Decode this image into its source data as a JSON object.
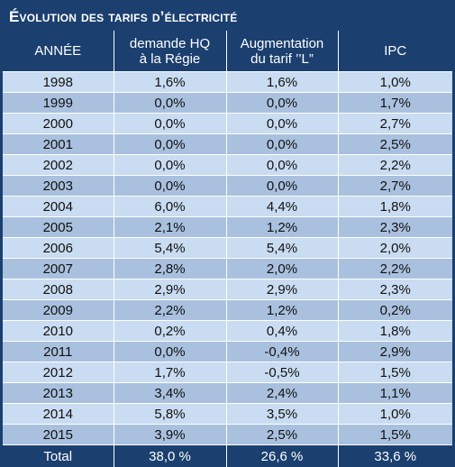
{
  "title": "Évolution des tarifs d’électricité",
  "columns": [
    {
      "line1": "ANNÉE",
      "line2": ""
    },
    {
      "line1": "demande HQ",
      "line2": "à la Régie"
    },
    {
      "line1": "Augmentation",
      "line2": "du tarif ’’L”"
    },
    {
      "line1": "IPC",
      "line2": ""
    }
  ],
  "rows": [
    [
      "1998",
      "1,6%",
      "1,6%",
      "1,0%"
    ],
    [
      "1999",
      "0,0%",
      "0,0%",
      "1,7%"
    ],
    [
      "2000",
      "0,0%",
      "0,0%",
      "2,7%"
    ],
    [
      "2001",
      "0,0%",
      "0,0%",
      "2,5%"
    ],
    [
      "2002",
      "0,0%",
      "0,0%",
      "2,2%"
    ],
    [
      "2003",
      "0,0%",
      "0,0%",
      "2,7%"
    ],
    [
      "2004",
      "6,0%",
      "4,4%",
      "1,8%"
    ],
    [
      "2005",
      "2,1%",
      "1,2%",
      "2,3%"
    ],
    [
      "2006",
      "5,4%",
      "5,4%",
      "2,0%"
    ],
    [
      "2007",
      "2,8%",
      "2,0%",
      "2,2%"
    ],
    [
      "2008",
      "2,9%",
      "2,9%",
      "2,3%"
    ],
    [
      "2009",
      "2,2%",
      "1,2%",
      "0,2%"
    ],
    [
      "2010",
      "0,2%",
      "0,4%",
      "1,8%"
    ],
    [
      "2011",
      "0,0%",
      "-0,4%",
      "2,9%"
    ],
    [
      "2012",
      "1,7%",
      "-0,5%",
      "1,5%"
    ],
    [
      "2013",
      "3,4%",
      "2,4%",
      "1,1%"
    ],
    [
      "2014",
      "5,8%",
      "3,5%",
      "1,0%"
    ],
    [
      "2015",
      "3,9%",
      "2,5%",
      "1,5%"
    ]
  ],
  "total": [
    "Total",
    "38,0 %",
    "26,6 %",
    "33,6 %"
  ],
  "colors": {
    "header_bg": "#1b3f6f",
    "row_light": "#c9dcf1",
    "row_dark": "#a9c1de"
  }
}
